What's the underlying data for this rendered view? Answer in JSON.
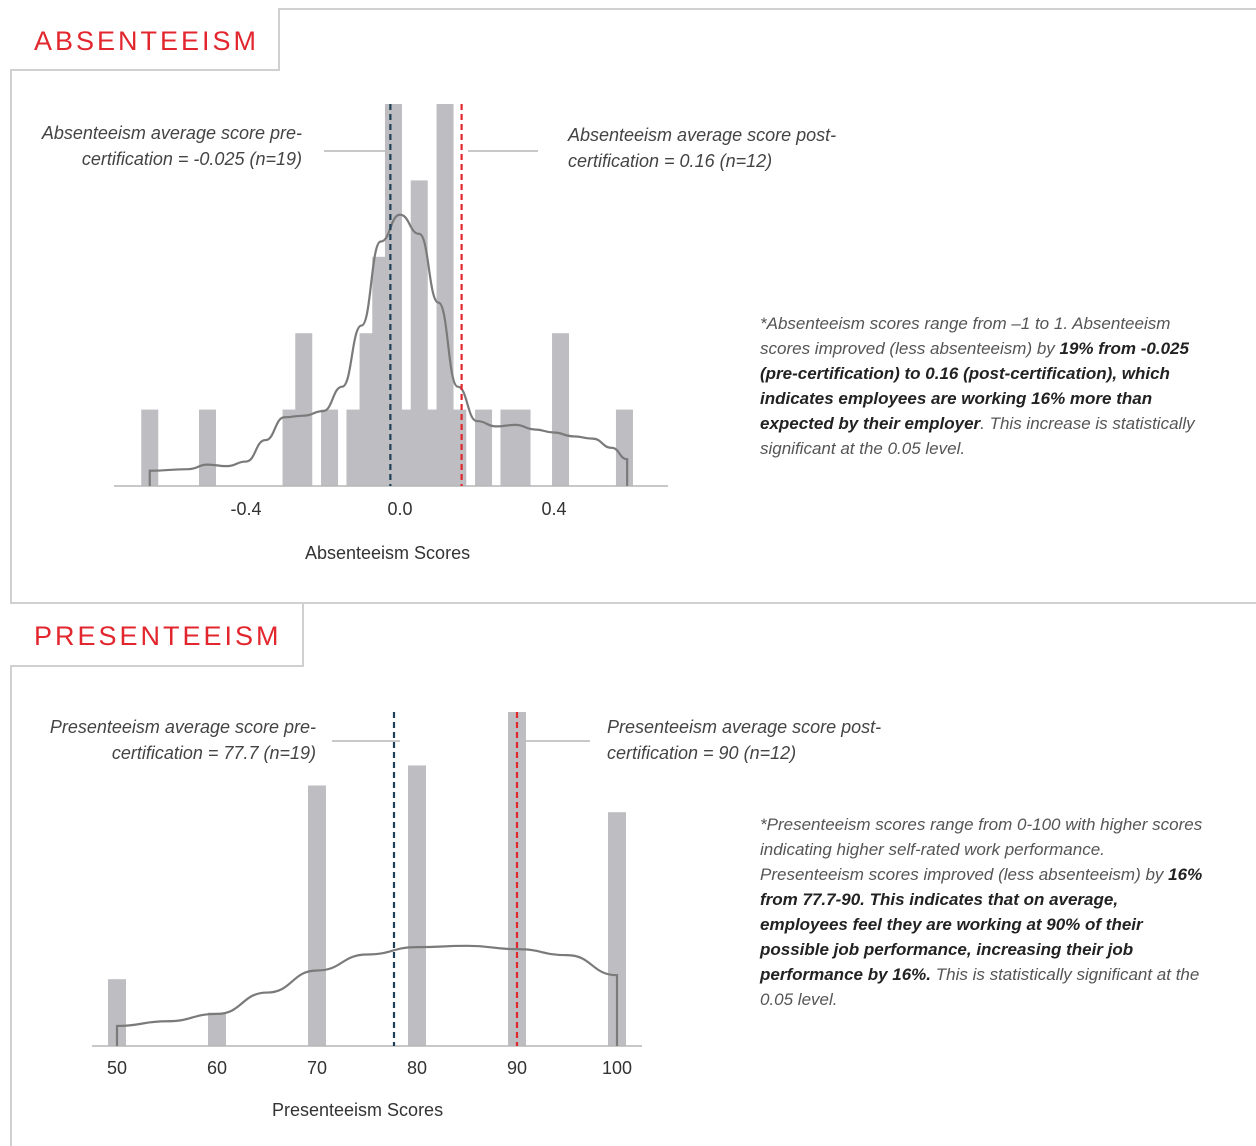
{
  "sections": {
    "absenteeism": {
      "title": "ABSENTEEISM",
      "callout_pre": "Absenteeism average score pre-certification = -0.025 (n=19)",
      "callout_post": "Absenteeism average score post-certification = 0.16 (n=12)",
      "note": {
        "part1": "*Absenteeism scores range from –1 to 1. Absenteeism scores improved (less absenteeism) by ",
        "bold": "19% from -0.025 (pre-certification) to 0.16 (post-certification), which indicates employees are working 16% more than expected by their employer",
        "part2": ". This increase is statistically significant at the 0.05 level."
      }
    },
    "presenteeism": {
      "title": "PRESENTEEISM",
      "callout_pre": "Presenteeism average score pre-certification = 77.7 (n=19)",
      "callout_post": "Presenteeism average score post-certification = 90 (n=12)",
      "note": {
        "part1": "*Presenteeism scores range from 0-100 with higher scores indicating higher self-rated work performance. Presenteeism scores improved (less absenteeism) by ",
        "bold": "16% from 77.7-90. This indicates that on average, employees feel they are working at 90% of their possible job performance, increasing their job performance by 16%.",
        "part2": " This is statistically significant at the 0.05 level."
      }
    }
  },
  "colors": {
    "accent": "#e2262d",
    "bar": "#bebec2",
    "density": "#7a7a7a",
    "pre_line": "#1f3f57",
    "post_line": "#e2262d",
    "callout_line": "#c8c8c8"
  },
  "chart_data": [
    {
      "type": "bar",
      "subtype": "histogram-with-density",
      "xlabel": "Absenteeism Scores",
      "ylabel": "",
      "xticks": [
        -0.4,
        0.0,
        0.4
      ],
      "xtick_labels": [
        "-0.4",
        "0.0",
        "0.4"
      ],
      "xlim": [
        -0.68,
        0.62
      ],
      "ylim": [
        0,
        5
      ],
      "bin_width": 0.0333,
      "bars": [
        {
          "x": -0.65,
          "count": 1
        },
        {
          "x": -0.5,
          "count": 1
        },
        {
          "x": -0.283,
          "count": 1
        },
        {
          "x": -0.25,
          "count": 2
        },
        {
          "x": -0.183,
          "count": 1
        },
        {
          "x": -0.117,
          "count": 1
        },
        {
          "x": -0.083,
          "count": 2
        },
        {
          "x": -0.05,
          "count": 3
        },
        {
          "x": -0.017,
          "count": 5
        },
        {
          "x": 0.017,
          "count": 1
        },
        {
          "x": 0.05,
          "count": 4
        },
        {
          "x": 0.083,
          "count": 1
        },
        {
          "x": 0.117,
          "count": 5
        },
        {
          "x": 0.15,
          "count": 1
        },
        {
          "x": 0.217,
          "count": 1
        },
        {
          "x": 0.283,
          "count": 1
        },
        {
          "x": 0.317,
          "count": 1
        },
        {
          "x": 0.417,
          "count": 2
        },
        {
          "x": 0.583,
          "count": 1
        }
      ],
      "density": [
        [
          -0.65,
          0.2
        ],
        [
          -0.55,
          0.22
        ],
        [
          -0.5,
          0.28
        ],
        [
          -0.45,
          0.26
        ],
        [
          -0.4,
          0.32
        ],
        [
          -0.35,
          0.6
        ],
        [
          -0.3,
          0.9
        ],
        [
          -0.25,
          0.92
        ],
        [
          -0.2,
          0.98
        ],
        [
          -0.15,
          1.3
        ],
        [
          -0.1,
          2.1
        ],
        [
          -0.05,
          3.2
        ],
        [
          0.0,
          3.55
        ],
        [
          0.05,
          3.3
        ],
        [
          0.1,
          2.4
        ],
        [
          0.15,
          1.3
        ],
        [
          0.2,
          0.85
        ],
        [
          0.25,
          0.78
        ],
        [
          0.3,
          0.8
        ],
        [
          0.35,
          0.74
        ],
        [
          0.4,
          0.7
        ],
        [
          0.45,
          0.65
        ],
        [
          0.5,
          0.62
        ],
        [
          0.55,
          0.5
        ],
        [
          0.59,
          0.35
        ]
      ],
      "reference_lines": [
        {
          "label": "pre-certification",
          "x": -0.025
        },
        {
          "label": "post-certification",
          "x": 0.16
        }
      ]
    },
    {
      "type": "bar",
      "subtype": "histogram-with-density",
      "xlabel": "Presenteeism Scores",
      "ylabel": "",
      "xticks": [
        50,
        60,
        70,
        80,
        90,
        100
      ],
      "xtick_labels": [
        "50",
        "60",
        "70",
        "80",
        "90",
        "100"
      ],
      "xlim": [
        48.5,
        103
      ],
      "ylim": [
        0,
        5
      ],
      "bin_width": 1.8,
      "bars": [
        {
          "x": 50,
          "count": 1
        },
        {
          "x": 60,
          "count": 0.5
        },
        {
          "x": 70,
          "count": 3.9
        },
        {
          "x": 80,
          "count": 4.2
        },
        {
          "x": 90,
          "count": 5
        },
        {
          "x": 100,
          "count": 3.5
        }
      ],
      "density": [
        [
          50,
          0.3
        ],
        [
          55,
          0.37
        ],
        [
          60,
          0.48
        ],
        [
          65,
          0.8
        ],
        [
          70,
          1.13
        ],
        [
          75,
          1.37
        ],
        [
          80,
          1.48
        ],
        [
          85,
          1.5
        ],
        [
          90,
          1.45
        ],
        [
          95,
          1.36
        ],
        [
          100,
          1.06
        ]
      ],
      "reference_lines": [
        {
          "label": "pre-certification",
          "x": 77.7
        },
        {
          "label": "post-certification",
          "x": 90
        }
      ]
    }
  ]
}
